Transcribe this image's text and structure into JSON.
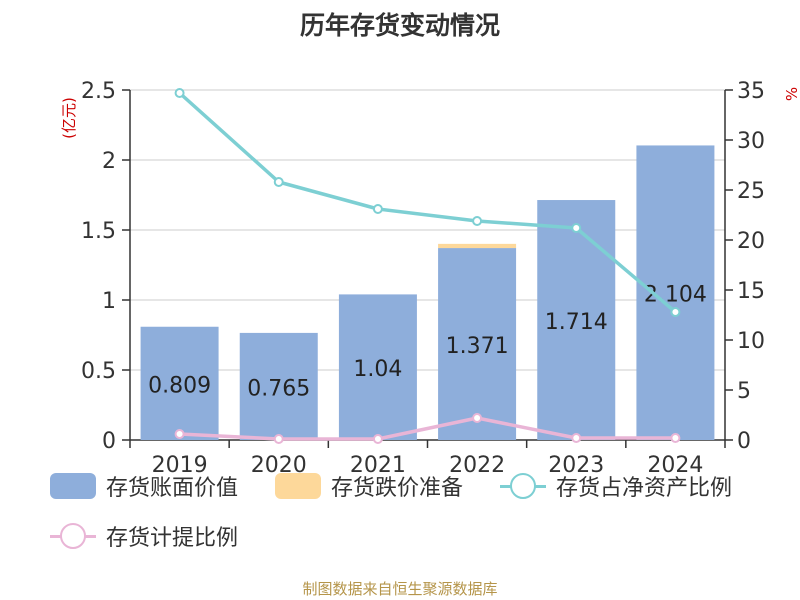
{
  "title": "历年存货变动情况",
  "footer": "制图数据来自恒生聚源数据库",
  "chart_data": {
    "type": "bar",
    "categories": [
      "2019",
      "2020",
      "2021",
      "2022",
      "2023",
      "2024"
    ],
    "series": [
      {
        "name": "存货账面价值",
        "kind": "bar",
        "axis": "left",
        "color": "#8eaedb",
        "values": [
          0.809,
          0.765,
          1.04,
          1.371,
          1.714,
          2.104
        ]
      },
      {
        "name": "存货跌价准备",
        "kind": "bar",
        "axis": "left",
        "color": "#fdd89a",
        "values": [
          0.0,
          0.0,
          0.0,
          0.03,
          0.0,
          0.0
        ]
      },
      {
        "name": "存货占净资产比例",
        "kind": "line",
        "axis": "right",
        "color": "#7dcfd3",
        "values": [
          34.7,
          25.8,
          23.1,
          21.9,
          21.2,
          12.8
        ]
      },
      {
        "name": "存货计提比例",
        "kind": "line",
        "axis": "right",
        "color": "#e9b5d6",
        "values": [
          0.6,
          0.1,
          0.1,
          2.2,
          0.2,
          0.2
        ]
      }
    ],
    "data_labels": [
      "0.809",
      "0.765",
      "1.04",
      "1.371",
      "1.714",
      "2.104"
    ],
    "y_left": {
      "label": "(亿元)",
      "ylim": [
        0,
        2.5
      ],
      "ticks": [
        "0",
        "0.5",
        "1",
        "1.5",
        "2",
        "2.5"
      ]
    },
    "y_right": {
      "label": "%",
      "ylim": [
        0,
        35
      ],
      "ticks": [
        "0",
        "5",
        "10",
        "15",
        "20",
        "25",
        "30",
        "35"
      ]
    },
    "grid": true,
    "legend_position": "bottom"
  }
}
